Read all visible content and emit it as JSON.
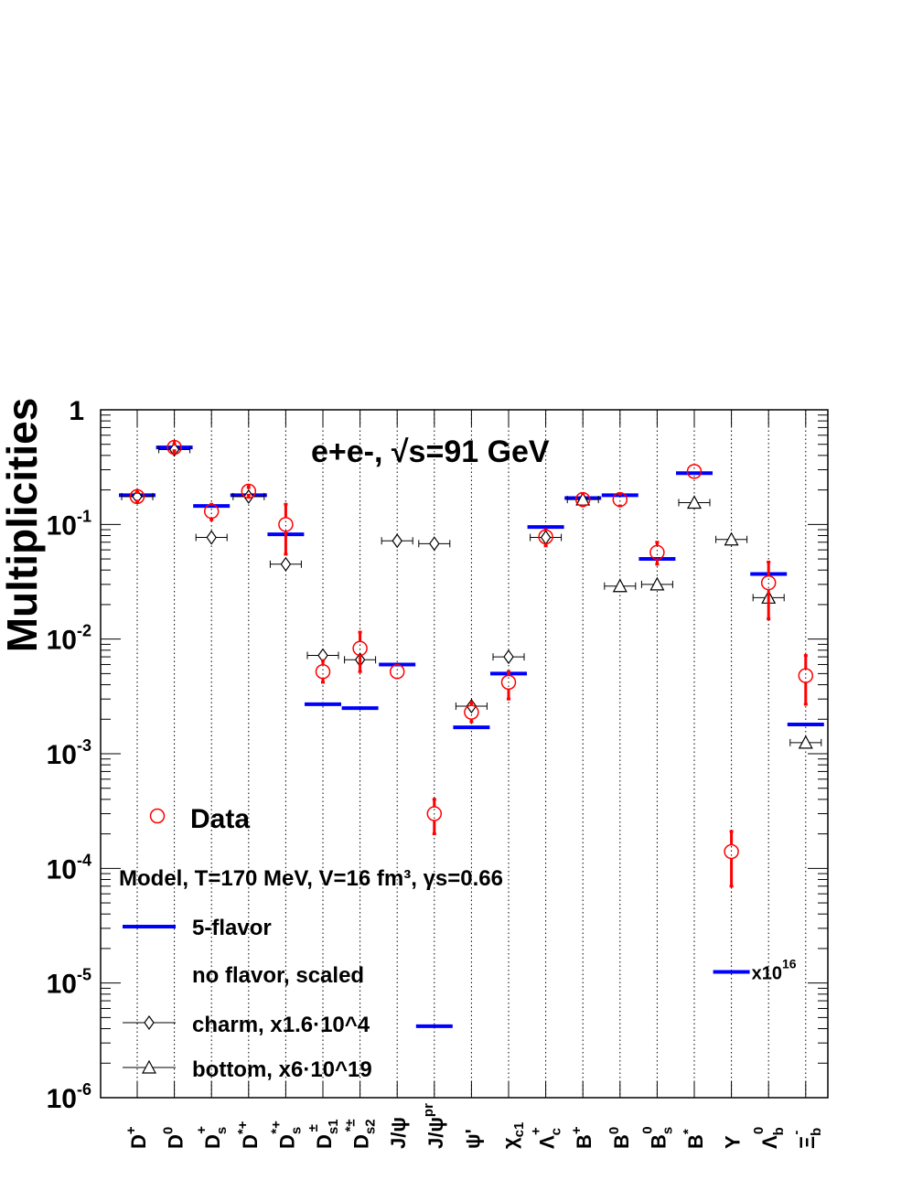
{
  "chart_data": {
    "type": "scatter",
    "ylabel": "Multiplicities",
    "y_scale": "log",
    "ylim": [
      1e-06,
      1
    ],
    "y_ticks": [
      {
        "value": 1,
        "base": "1",
        "exp": ""
      },
      {
        "value": 0.1,
        "base": "10",
        "exp": "-1"
      },
      {
        "value": 0.01,
        "base": "10",
        "exp": "-2"
      },
      {
        "value": 0.001,
        "base": "10",
        "exp": "-3"
      },
      {
        "value": 0.0001,
        "base": "10",
        "exp": "-4"
      },
      {
        "value": 1e-05,
        "base": "10",
        "exp": "-5"
      },
      {
        "value": 1e-06,
        "base": "10",
        "exp": "-6"
      }
    ],
    "annotation": {
      "text": "e+e-,  √s=91 GeV"
    },
    "categories": [
      {
        "base": "D",
        "sup": "+",
        "sub": ""
      },
      {
        "base": "D",
        "sup": "0",
        "sub": ""
      },
      {
        "base": "D",
        "sup": "+",
        "sub": "s"
      },
      {
        "base": "D",
        "sup": "*+",
        "sub": ""
      },
      {
        "base": "D",
        "sup": "*+",
        "sub": "s"
      },
      {
        "base": "D",
        "sup": "±",
        "sub": "s1"
      },
      {
        "base": "D",
        "sup": "*±",
        "sub": "s2"
      },
      {
        "base": "J/ψ",
        "sup": "",
        "sub": ""
      },
      {
        "base": "J/ψ",
        "sup": "pr",
        "sub": ""
      },
      {
        "base": "ψ'",
        "sup": "",
        "sub": ""
      },
      {
        "base": "χ",
        "sup": "",
        "sub": "c1"
      },
      {
        "base": "Λ",
        "sup": "+",
        "sub": "c"
      },
      {
        "base": "B",
        "sup": "+",
        "sub": ""
      },
      {
        "base": "B",
        "sup": "0",
        "sub": ""
      },
      {
        "base": "B",
        "sup": "0",
        "sub": "s"
      },
      {
        "base": "B",
        "sup": "*",
        "sub": ""
      },
      {
        "base": "Υ",
        "sup": "",
        "sub": ""
      },
      {
        "base": "Λ",
        "sup": "0",
        "sub": "b"
      },
      {
        "base": "Ξ",
        "sup": "-",
        "sub": "b"
      }
    ],
    "series": [
      {
        "name": "Data",
        "color": "#ff0000",
        "marker": "open-circle",
        "values": [
          0.175,
          0.47,
          0.13,
          0.195,
          0.1,
          0.0052,
          0.0083,
          0.0052,
          0.0003,
          0.0023,
          0.0042,
          0.078,
          0.165,
          0.165,
          0.057,
          0.29,
          0.00014,
          0.031,
          0.0048
        ],
        "err_low": [
          0.16,
          0.44,
          0.11,
          0.18,
          0.055,
          0.0042,
          0.0052,
          null,
          0.0002,
          0.0019,
          0.003,
          0.065,
          0.145,
          0.145,
          0.045,
          null,
          7e-05,
          0.015,
          0.0027
        ],
        "err_high": [
          0.19,
          0.5,
          0.15,
          0.21,
          0.15,
          0.0065,
          0.0115,
          null,
          0.0004,
          0.0028,
          0.0052,
          0.09,
          0.185,
          0.185,
          0.07,
          null,
          0.00021,
          0.047,
          0.0072
        ]
      },
      {
        "name": "5-flavor",
        "color": "#0000ff",
        "marker": "horizontal-bar",
        "values": [
          0.18,
          0.47,
          0.145,
          0.18,
          0.082,
          0.0027,
          0.0025,
          0.006,
          4.2e-06,
          0.0017,
          0.005,
          0.095,
          0.17,
          0.18,
          0.05,
          0.28,
          1.25e-05,
          0.037,
          0.0018
        ]
      },
      {
        "name": "charm, x1.6·10^4",
        "color": "#000000",
        "marker": "open-diamond",
        "values": [
          0.175,
          0.45,
          0.077,
          0.175,
          0.045,
          0.0072,
          0.0066,
          0.072,
          0.068,
          0.0026,
          0.007,
          0.077,
          null,
          null,
          null,
          null,
          null,
          null,
          null
        ]
      },
      {
        "name": "bottom, x6·10^19",
        "color": "#000000",
        "marker": "open-triangle",
        "values": [
          null,
          null,
          null,
          null,
          null,
          null,
          null,
          null,
          null,
          null,
          null,
          null,
          0.165,
          0.029,
          0.03,
          0.155,
          0.074,
          0.023,
          0.00125
        ]
      }
    ],
    "upsilon_note": "x10^16",
    "grid": "vertical dotted lines at each category",
    "legend": {
      "placement": "bottom-left",
      "model_title": "Model, T=170 MeV, V=16 fm³, γs=0.66",
      "no_flavor_label": "no flavor, scaled"
    }
  }
}
